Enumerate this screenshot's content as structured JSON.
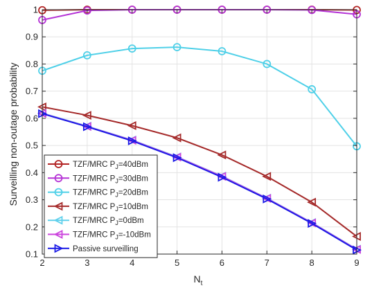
{
  "chart_data": {
    "type": "line",
    "title": "",
    "xlabel": "N",
    "xlabel_sub": "t",
    "ylabel": "Surveilling non-outage probability",
    "xlim": [
      2,
      9
    ],
    "ylim": [
      0.1,
      1.0
    ],
    "xticks": [
      "2",
      "3",
      "4",
      "5",
      "6",
      "7",
      "8",
      "9"
    ],
    "yticks": [
      "0.1",
      "0.2",
      "0.3",
      "0.4",
      "0.5",
      "0.6",
      "0.7",
      "0.8",
      "0.9",
      "1"
    ],
    "grid": true,
    "legend_position": "bottom-left",
    "x": [
      2,
      3,
      4,
      5,
      6,
      7,
      8,
      9
    ],
    "series": [
      {
        "name": "TZF/MRC P",
        "sub": "J",
        "suffix": "=40dBm",
        "marker": "circle",
        "color": "#b22222",
        "values": [
          0.998,
          1.0,
          1.0,
          1.0,
          1.0,
          1.0,
          1.0,
          0.999
        ]
      },
      {
        "name": "TZF/MRC P",
        "sub": "J",
        "suffix": "=30dBm",
        "marker": "circle",
        "color": "#b533d6",
        "values": [
          0.962,
          0.997,
          1.0,
          1.0,
          1.0,
          1.0,
          0.999,
          0.983
        ]
      },
      {
        "name": "TZF/MRC P",
        "sub": "J",
        "suffix": "=20dBm",
        "marker": "circle",
        "color": "#4fd0e8",
        "values": [
          0.775,
          0.832,
          0.857,
          0.862,
          0.847,
          0.8,
          0.707,
          0.497
        ]
      },
      {
        "name": "TZF/MRC P",
        "sub": "J",
        "suffix": "=10dBm",
        "marker": "triangle-left",
        "color": "#a52a2a",
        "values": [
          0.642,
          0.611,
          0.573,
          0.528,
          0.465,
          0.386,
          0.291,
          0.165
        ]
      },
      {
        "name": "TZF/MRC P",
        "sub": "J",
        "suffix": "=0dBm",
        "marker": "triangle-left",
        "color": "#5fd0ec",
        "values": [
          0.619,
          0.571,
          0.52,
          0.458,
          0.387,
          0.306,
          0.216,
          0.118
        ]
      },
      {
        "name": "TZF/MRC P",
        "sub": "J",
        "suffix": "=-10dBm",
        "marker": "triangle-left",
        "color": "#cc44dd",
        "values": [
          0.618,
          0.57,
          0.519,
          0.457,
          0.386,
          0.305,
          0.215,
          0.117
        ]
      },
      {
        "name": "Passive surveilling",
        "sub": "",
        "suffix": "",
        "marker": "triangle-right",
        "color": "#1a1ae6",
        "values": [
          0.617,
          0.569,
          0.517,
          0.455,
          0.383,
          0.303,
          0.213,
          0.115
        ]
      }
    ]
  }
}
